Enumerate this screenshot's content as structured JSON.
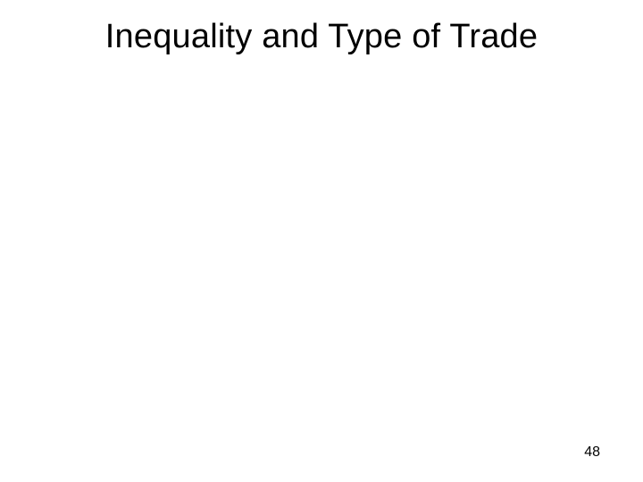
{
  "slide": {
    "title": "Inequality and Type of Trade",
    "page_number": "48",
    "background_color": "#ffffff",
    "title_color": "#000000",
    "title_fontsize": 38,
    "page_number_color": "#000000",
    "page_number_fontsize": 16
  }
}
